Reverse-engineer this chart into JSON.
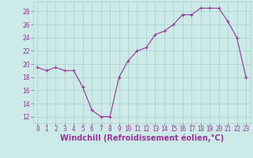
{
  "x": [
    0,
    1,
    2,
    3,
    4,
    5,
    6,
    7,
    8,
    9,
    10,
    11,
    12,
    13,
    14,
    15,
    16,
    17,
    18,
    19,
    20,
    21,
    22,
    23
  ],
  "y": [
    19.5,
    19.0,
    19.5,
    19.0,
    19.0,
    16.5,
    13.0,
    12.0,
    12.0,
    18.0,
    20.5,
    22.0,
    22.5,
    24.5,
    25.0,
    26.0,
    27.5,
    27.5,
    28.5,
    28.5,
    28.5,
    26.5,
    24.0,
    18.0
  ],
  "line_color": "#993399",
  "marker": "+",
  "bg_color": "#cceae7",
  "grid_color": "#aacfcc",
  "xlabel": "Windchill (Refroidissement éolien,°C)",
  "xlim": [
    -0.5,
    23.5
  ],
  "ylim": [
    11,
    29.5
  ],
  "yticks": [
    12,
    14,
    16,
    18,
    20,
    22,
    24,
    26,
    28
  ],
  "xticks": [
    0,
    1,
    2,
    3,
    4,
    5,
    6,
    7,
    8,
    9,
    10,
    11,
    12,
    13,
    14,
    15,
    16,
    17,
    18,
    19,
    20,
    21,
    22,
    23
  ],
  "tick_color": "#993399",
  "label_color": "#993399",
  "tick_fontsize": 5.5,
  "xlabel_fontsize": 7.0,
  "linewidth": 0.8,
  "markersize": 3.0
}
